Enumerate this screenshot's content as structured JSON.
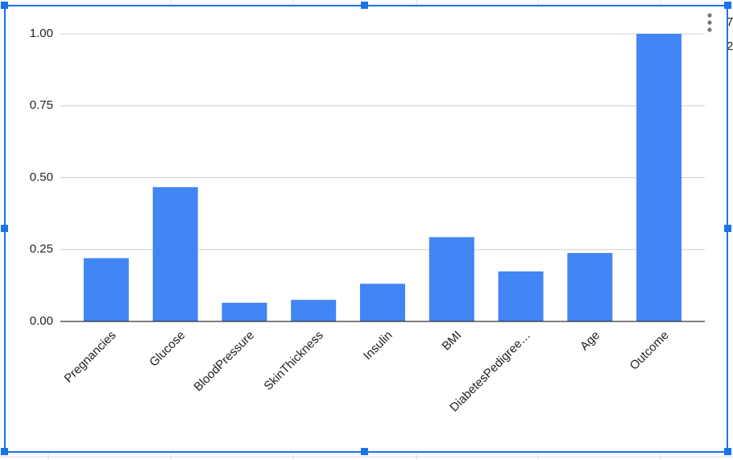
{
  "chart_data": {
    "type": "bar",
    "categories": [
      "Pregnancies",
      "Glucose",
      "BloodPressure",
      "SkinThickness",
      "Insulin",
      "BMI",
      "DiabetesPedigree…",
      "Age",
      "Outcome"
    ],
    "values": [
      0.22,
      0.467,
      0.065,
      0.075,
      0.131,
      0.293,
      0.174,
      0.238,
      1.0
    ],
    "color": "#4285f4",
    "ylim": [
      0,
      1.0
    ],
    "yticks": [
      {
        "value": 0,
        "label": "0.00"
      },
      {
        "value": 0.25,
        "label": "0.25"
      },
      {
        "value": 0.5,
        "label": "0.50"
      },
      {
        "value": 0.75,
        "label": "0.75"
      },
      {
        "value": 1.0,
        "label": "1.00"
      }
    ],
    "grid": true
  },
  "sheet_fragments": [
    "7",
    "2"
  ]
}
